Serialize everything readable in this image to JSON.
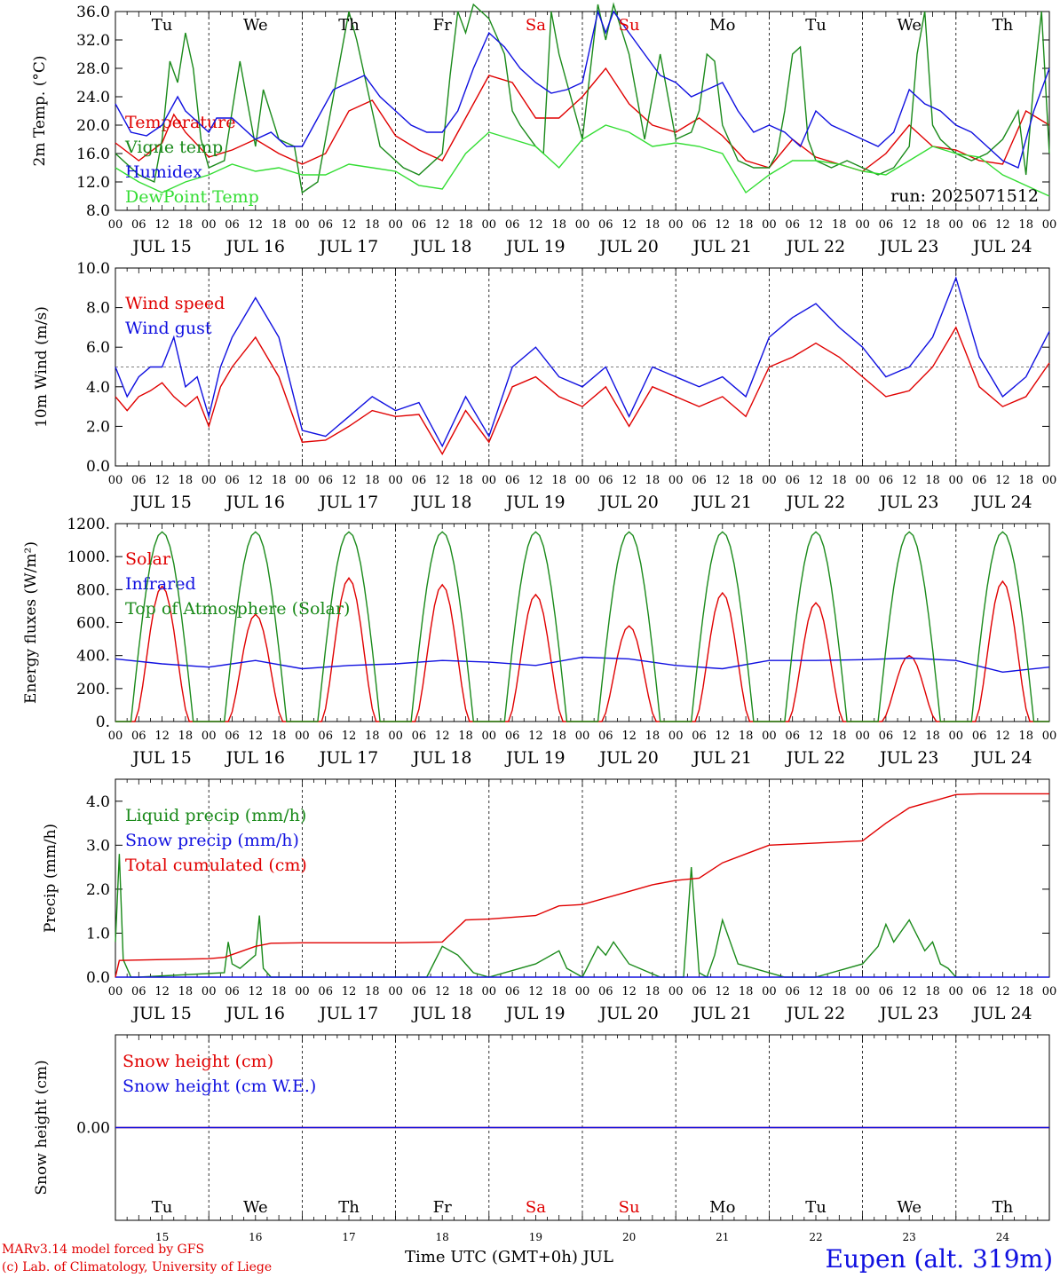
{
  "days": [
    "15",
    "16",
    "17",
    "18",
    "19",
    "20",
    "21",
    "22",
    "23",
    "24"
  ],
  "month": "JUL",
  "weekdays": [
    {
      "label": "Tu",
      "color": "#000000"
    },
    {
      "label": "We",
      "color": "#000000"
    },
    {
      "label": "Th",
      "color": "#000000"
    },
    {
      "label": "Fr",
      "color": "#000000"
    },
    {
      "label": "Sa",
      "color": "#e00000"
    },
    {
      "label": "Su",
      "color": "#e00000"
    },
    {
      "label": "Mo",
      "color": "#000000"
    },
    {
      "label": "Tu",
      "color": "#000000"
    },
    {
      "label": "We",
      "color": "#000000"
    },
    {
      "label": "Th",
      "color": "#000000"
    }
  ],
  "hour_ticks": [
    "00",
    "06",
    "12",
    "18"
  ],
  "last_hour_tick": "00",
  "run_label": "run: 2025071512",
  "footer": {
    "model": "MARv3.14 model forced by GFS",
    "copyright": "(c) Lab. of Climatology, University of Liege",
    "time_axis": "Time UTC (GMT+0h) JUL",
    "station": "Eupen (alt. 319m)"
  },
  "colors": {
    "red": "#e00000",
    "green": "#1a8a1a",
    "blue": "#1010e0",
    "lightgreen": "#33dd33"
  },
  "chart_data": [
    {
      "type": "line",
      "ylabel": "2m Temp. (°C)",
      "ylim": [
        8,
        36
      ],
      "yticks": [
        "8.0",
        "12.0",
        "16.0",
        "20.0",
        "24.0",
        "28.0",
        "32.0",
        "36.0"
      ],
      "x_unit": "hours since JUL 15 00 UTC",
      "x_range": [
        0,
        240
      ],
      "series": [
        {
          "name": "Temperature",
          "color": "#e00000",
          "x": [
            0,
            6,
            12,
            15,
            18,
            24,
            30,
            36,
            42,
            48,
            54,
            60,
            66,
            72,
            78,
            84,
            90,
            96,
            102,
            108,
            114,
            120,
            126,
            132,
            138,
            144,
            150,
            156,
            162,
            168,
            174,
            180,
            186,
            192,
            198,
            204,
            210,
            216,
            222,
            228,
            234,
            240
          ],
          "y": [
            17.5,
            15.0,
            17.5,
            21.5,
            19,
            15.5,
            16.5,
            18,
            16,
            14.5,
            16,
            22,
            23.5,
            18.5,
            16.5,
            15,
            21,
            27,
            26,
            21,
            21,
            24,
            28,
            23,
            20,
            19,
            21,
            18.5,
            15,
            14,
            18,
            15.5,
            14.5,
            13.5,
            16,
            20,
            17,
            16.5,
            15,
            14.5,
            22,
            20
          ]
        },
        {
          "name": "Vigne temp",
          "color": "#1a8a1a",
          "x": [
            0,
            6,
            10,
            12,
            14,
            16,
            18,
            20,
            22,
            24,
            28,
            32,
            34,
            36,
            38,
            42,
            46,
            48,
            52,
            54,
            60,
            62,
            66,
            68,
            72,
            74,
            78,
            84,
            86,
            88,
            90,
            92,
            96,
            100,
            102,
            104,
            108,
            110,
            112,
            114,
            120,
            124,
            126,
            128,
            132,
            134,
            136,
            138,
            140,
            144,
            148,
            150,
            152,
            154,
            156,
            160,
            164,
            168,
            170,
            172,
            174,
            176,
            178,
            180,
            184,
            188,
            192,
            196,
            200,
            204,
            206,
            208,
            210,
            212,
            214,
            216,
            220,
            224,
            228,
            232,
            234,
            236,
            238,
            240
          ],
          "y": [
            16,
            13,
            12,
            18,
            29,
            26,
            33,
            28,
            18,
            14,
            15,
            29,
            23,
            17,
            25,
            18,
            17,
            10.5,
            12,
            18,
            36,
            32,
            22,
            17,
            15,
            14,
            13,
            16,
            27,
            36,
            33,
            37,
            35,
            30,
            22,
            20,
            17,
            16,
            36,
            30,
            18,
            37,
            32,
            37,
            30,
            24,
            18,
            24,
            30,
            18,
            19,
            22,
            30,
            29,
            20,
            15,
            14,
            14,
            16,
            22,
            30,
            31,
            18,
            15,
            14,
            15,
            14,
            13,
            14,
            17,
            30,
            36,
            20,
            18,
            17,
            16,
            15,
            16,
            18,
            22,
            13,
            26,
            36,
            16
          ]
        },
        {
          "name": "Humidex",
          "color": "#1010e0",
          "x": [
            0,
            4,
            8,
            12,
            16,
            18,
            22,
            24,
            26,
            30,
            36,
            40,
            44,
            48,
            52,
            56,
            60,
            64,
            68,
            72,
            76,
            80,
            84,
            88,
            92,
            96,
            100,
            104,
            108,
            112,
            116,
            120,
            124,
            126,
            128,
            132,
            136,
            140,
            144,
            148,
            152,
            156,
            160,
            164,
            168,
            172,
            176,
            180,
            184,
            188,
            192,
            196,
            200,
            204,
            208,
            212,
            216,
            220,
            224,
            228,
            232,
            236,
            240
          ],
          "y": [
            23,
            19,
            18.5,
            20,
            24,
            22,
            20,
            19,
            21,
            21,
            18,
            19,
            17,
            17,
            21,
            25,
            26,
            27,
            24,
            22,
            20,
            19,
            19,
            22,
            28,
            33,
            31,
            28,
            26,
            24.5,
            25,
            26,
            36,
            33,
            36,
            33,
            30,
            27,
            26,
            24,
            25,
            26,
            22,
            19,
            20,
            19,
            17,
            22,
            20,
            19,
            18,
            17,
            19,
            25,
            23,
            22,
            20,
            19,
            17,
            15,
            14,
            22,
            28
          ]
        },
        {
          "name": "DewPoint Temp",
          "color": "#33dd33",
          "x": [
            0,
            6,
            12,
            18,
            24,
            30,
            36,
            42,
            48,
            54,
            60,
            66,
            72,
            78,
            84,
            90,
            96,
            102,
            108,
            114,
            120,
            126,
            132,
            138,
            144,
            150,
            156,
            162,
            168,
            174,
            180,
            186,
            192,
            198,
            204,
            210,
            216,
            222,
            228,
            234,
            240
          ],
          "y": [
            14,
            12,
            10.5,
            12,
            13,
            14.5,
            13.5,
            14,
            13,
            13,
            14.5,
            14,
            13.5,
            11.5,
            11,
            16,
            19,
            18,
            17,
            14,
            18,
            20,
            19,
            17,
            17.5,
            17,
            16,
            10.5,
            13,
            15,
            15,
            14.5,
            13.5,
            13,
            15,
            17,
            16,
            15.5,
            13,
            11.5,
            10
          ]
        }
      ]
    },
    {
      "type": "line",
      "ylabel": "10m Wind (m/s)",
      "ylim": [
        0,
        10
      ],
      "yticks": [
        "0.0",
        "2.0",
        "4.0",
        "6.0",
        "8.0",
        "10.0"
      ],
      "reference_line": 5.0,
      "series": [
        {
          "name": "Wind speed",
          "color": "#e00000",
          "x": [
            0,
            3,
            6,
            9,
            12,
            15,
            18,
            21,
            24,
            27,
            30,
            36,
            42,
            48,
            54,
            60,
            66,
            72,
            78,
            84,
            90,
            96,
            102,
            108,
            114,
            120,
            126,
            132,
            138,
            144,
            150,
            156,
            162,
            168,
            174,
            180,
            186,
            192,
            198,
            204,
            210,
            216,
            222,
            228,
            234,
            240
          ],
          "y": [
            3.5,
            2.8,
            3.5,
            3.8,
            4.2,
            3.5,
            3.0,
            3.5,
            2.0,
            4.0,
            5.0,
            6.5,
            4.5,
            1.2,
            1.3,
            2.0,
            2.8,
            2.5,
            2.6,
            0.6,
            2.8,
            1.2,
            4.0,
            4.5,
            3.5,
            3.0,
            4.0,
            2.0,
            4.0,
            3.5,
            3.0,
            3.5,
            2.5,
            5.0,
            5.5,
            6.2,
            5.5,
            4.5,
            3.5,
            3.8,
            5.0,
            7.0,
            4.0,
            3.0,
            3.5,
            5.2
          ]
        },
        {
          "name": "Wind gust",
          "color": "#1010e0",
          "x": [
            0,
            3,
            6,
            9,
            12,
            15,
            18,
            21,
            24,
            27,
            30,
            36,
            42,
            48,
            54,
            60,
            66,
            72,
            78,
            84,
            90,
            96,
            102,
            108,
            114,
            120,
            126,
            132,
            138,
            144,
            150,
            156,
            162,
            168,
            174,
            180,
            186,
            192,
            198,
            204,
            210,
            216,
            222,
            228,
            234,
            240
          ],
          "y": [
            5.0,
            3.5,
            4.5,
            5.0,
            5.0,
            6.5,
            4.0,
            4.5,
            2.5,
            5.0,
            6.5,
            8.5,
            6.5,
            1.8,
            1.5,
            2.5,
            3.5,
            2.8,
            3.2,
            1.0,
            3.5,
            1.5,
            5.0,
            6.0,
            4.5,
            4.0,
            5.0,
            2.5,
            5.0,
            4.5,
            4.0,
            4.5,
            3.5,
            6.5,
            7.5,
            8.2,
            7.0,
            6.0,
            4.5,
            5.0,
            6.5,
            9.5,
            5.5,
            3.5,
            4.5,
            6.8
          ]
        }
      ]
    },
    {
      "type": "line",
      "ylabel": "Energy fluxes (W/m²)",
      "ylim": [
        0,
        1200
      ],
      "yticks": [
        "0.",
        "200.",
        "400.",
        "600.",
        "800.",
        "1000.",
        "1200."
      ],
      "series": [
        {
          "name": "Solar",
          "color": "#e00000",
          "peaks": [
            820,
            650,
            870,
            830,
            770,
            580,
            780,
            720,
            400,
            850
          ]
        },
        {
          "name": "Infrared",
          "color": "#1010e0",
          "x": [
            0,
            12,
            24,
            36,
            48,
            60,
            72,
            84,
            96,
            108,
            120,
            132,
            144,
            156,
            168,
            180,
            192,
            204,
            216,
            228,
            240
          ],
          "y": [
            380,
            350,
            330,
            370,
            320,
            340,
            350,
            370,
            360,
            340,
            390,
            380,
            340,
            320,
            370,
            370,
            375,
            385,
            370,
            300,
            330
          ]
        },
        {
          "name": "Top of Atmosphere (Solar)",
          "color": "#1a8a1a",
          "peak": 1150
        }
      ]
    },
    {
      "type": "line",
      "ylabel": "Precip (mm/h)",
      "ylim": [
        0,
        4.5
      ],
      "yticks": [
        "0.0",
        "1.0",
        "2.0",
        "3.0",
        "4.0"
      ],
      "series": [
        {
          "name": "Liquid precip (mm/h)",
          "color": "#1a8a1a",
          "x": [
            0,
            1,
            2,
            4,
            6,
            28,
            29,
            30,
            32,
            36,
            37,
            38,
            40,
            80,
            84,
            88,
            92,
            96,
            108,
            114,
            116,
            120,
            124,
            126,
            128,
            132,
            140,
            146,
            148,
            150,
            152,
            154,
            156,
            160,
            172,
            174,
            180,
            184,
            188,
            192,
            196,
            198,
            200,
            204,
            208,
            210,
            212,
            214,
            216,
            220
          ],
          "y": [
            0.8,
            2.8,
            0.4,
            0,
            0,
            0.1,
            0.8,
            0.3,
            0.2,
            0.5,
            1.4,
            0.2,
            0,
            0,
            0.7,
            0.5,
            0.1,
            0,
            0.3,
            0.6,
            0.2,
            0,
            0.7,
            0.5,
            0.8,
            0.3,
            0,
            0,
            2.5,
            0.1,
            0,
            0.5,
            1.3,
            0.3,
            0,
            0,
            0,
            0.1,
            0.2,
            0.3,
            0.7,
            1.2,
            0.8,
            1.3,
            0.6,
            0.8,
            0.3,
            0.2,
            0,
            0
          ]
        },
        {
          "name": "Snow precip (mm/h)",
          "color": "#1010e0",
          "x": [
            0,
            240
          ],
          "y": [
            0,
            0
          ]
        },
        {
          "name": "Total cumulated (cm)",
          "color": "#e00000",
          "x": [
            0,
            1,
            12,
            24,
            28,
            36,
            40,
            48,
            72,
            84,
            90,
            96,
            108,
            114,
            120,
            132,
            138,
            144,
            150,
            156,
            162,
            168,
            180,
            192,
            198,
            204,
            210,
            216,
            222,
            228,
            240
          ],
          "y": [
            0.0,
            0.38,
            0.4,
            0.42,
            0.45,
            0.7,
            0.77,
            0.78,
            0.78,
            0.8,
            1.3,
            1.32,
            1.4,
            1.62,
            1.65,
            1.95,
            2.1,
            2.2,
            2.25,
            2.6,
            2.8,
            3.0,
            3.05,
            3.1,
            3.5,
            3.85,
            4.0,
            4.15,
            4.17,
            4.17,
            4.17
          ]
        }
      ]
    },
    {
      "type": "line",
      "ylabel": "Snow height (cm)",
      "ylim": [
        -1,
        1
      ],
      "yticks": [
        "0.00"
      ],
      "series": [
        {
          "name": "Snow height (cm)",
          "color": "#e00000",
          "x": [
            0,
            240
          ],
          "y": [
            0,
            0
          ]
        },
        {
          "name": "Snow height (cm W.E.)",
          "color": "#1010e0",
          "x": [
            0,
            240
          ],
          "y": [
            0,
            0
          ]
        }
      ]
    }
  ]
}
